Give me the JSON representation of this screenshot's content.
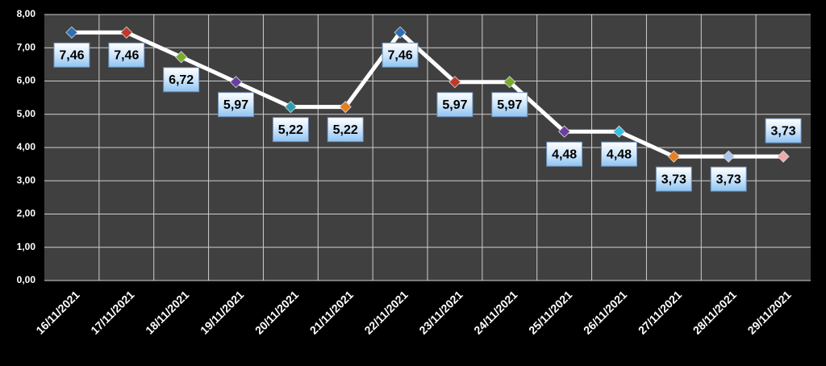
{
  "chart_data": {
    "type": "line",
    "categories": [
      "16/11/2021",
      "17/11/2021",
      "18/11/2021",
      "19/11/2021",
      "20/11/2021",
      "21/11/2021",
      "22/11/2021",
      "23/11/2021",
      "24/11/2021",
      "25/11/2021",
      "26/11/2021",
      "27/11/2021",
      "28/11/2021",
      "29/11/2021"
    ],
    "values": [
      7.46,
      7.46,
      6.72,
      5.97,
      5.22,
      5.22,
      7.46,
      5.97,
      5.97,
      4.48,
      4.48,
      3.73,
      3.73,
      3.73
    ],
    "value_labels": [
      "7,46",
      "7,46",
      "6,72",
      "5,97",
      "5,22",
      "5,22",
      "7,46",
      "5,97",
      "5,97",
      "4,48",
      "4,48",
      "3,73",
      "3,73",
      "3,73"
    ],
    "color": "#ffffff",
    "marker_colors": [
      "#2e6fb5",
      "#c0392b",
      "#7aab2e",
      "#6a3fa0",
      "#2a9fb0",
      "#e67e22",
      "#2e6fb5",
      "#c0392b",
      "#7aab2e",
      "#6a3fa0",
      "#35c0e0",
      "#e67e22",
      "#a8c4e8",
      "#f0a8a8"
    ],
    "ylim": [
      0,
      8
    ],
    "yticks": [
      {
        "value": 0,
        "label": "0,00"
      },
      {
        "value": 1,
        "label": "1,00"
      },
      {
        "value": 2,
        "label": "2,00"
      },
      {
        "value": 3,
        "label": "3,00"
      },
      {
        "value": 4,
        "label": "4,00"
      },
      {
        "value": 5,
        "label": "5,00"
      },
      {
        "value": 6,
        "label": "6,00"
      },
      {
        "value": 7,
        "label": "7,00"
      },
      {
        "value": 8,
        "label": "8,00"
      }
    ],
    "grid": true
  }
}
